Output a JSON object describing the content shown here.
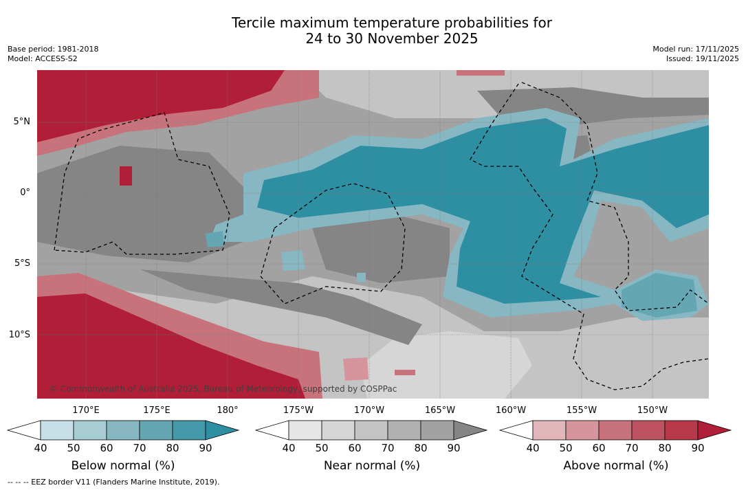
{
  "title": {
    "line1": "Tercile maximum temperature probabilities for",
    "line2": "24 to 30 November 2025"
  },
  "meta": {
    "base_period": "Base period: 1981-2018",
    "model": "Model: ACCESS-S2",
    "model_run": "Model run: 17/11/2025",
    "issued": "Issued: 19/11/2025"
  },
  "map": {
    "lat_labels": [
      "5°N",
      "0°",
      "5°S",
      "10°S"
    ],
    "lon_labels": [
      "170°E",
      "175°E",
      "180°",
      "175°W",
      "170°W",
      "165°W",
      "160°W",
      "155°W",
      "150°W"
    ],
    "copyright": "© Commonwealth of Australia 2025, Bureau of Meteorology, supported by COSPPac"
  },
  "colorbars": [
    {
      "label": "Below normal (%)",
      "ticks": [
        "40",
        "50",
        "60",
        "70",
        "80",
        "90"
      ],
      "colors": [
        "#ffffff",
        "#c6e0e6",
        "#a7ccd3",
        "#87b7c2",
        "#64a7b3",
        "#4599a8",
        "#2e8fa3"
      ]
    },
    {
      "label": "Near normal (%)",
      "ticks": [
        "40",
        "50",
        "60",
        "70",
        "80",
        "90"
      ],
      "colors": [
        "#ffffff",
        "#e6e6e6",
        "#d6d6d6",
        "#c4c4c4",
        "#b1b1b1",
        "#a2a2a2",
        "#858585"
      ]
    },
    {
      "label": "Above normal (%)",
      "ticks": [
        "40",
        "50",
        "60",
        "70",
        "80",
        "90"
      ],
      "colors": [
        "#ffffff",
        "#e2b7bb",
        "#d6959c",
        "#c8727c",
        "#bd5360",
        "#b7394a",
        "#b01e38"
      ]
    }
  ],
  "footer": "--  --  -- EEZ border V11 (Flanders Marine Institute, 2019)."
}
